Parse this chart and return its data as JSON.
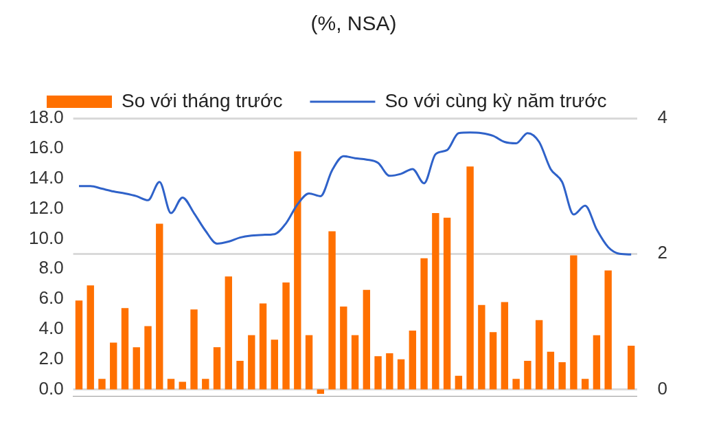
{
  "chart_data": {
    "type": "bar",
    "title": "(%, NSA)",
    "categories": [
      null,
      null,
      null,
      null,
      null,
      null,
      null,
      null,
      null,
      null,
      null,
      null,
      null,
      null,
      null,
      null,
      null,
      null,
      null,
      null,
      null,
      null,
      null,
      null,
      null,
      null,
      null,
      null,
      null,
      null,
      null,
      null,
      null,
      null,
      null,
      null,
      null,
      null,
      null,
      null,
      null,
      null,
      null,
      null,
      null,
      null,
      null,
      null,
      null
    ],
    "series": [
      {
        "name": "So với tháng trước",
        "color": "#ff7000",
        "values": [
          5.9,
          6.9,
          0.7,
          3.1,
          5.4,
          2.8,
          4.2,
          11.0,
          0.7,
          0.5,
          5.3,
          0.7,
          2.8,
          7.5,
          1.9,
          3.6,
          5.7,
          3.3,
          7.1,
          15.8,
          3.6,
          -0.3,
          10.5,
          5.5,
          3.6,
          6.6,
          2.2,
          2.4,
          2.0,
          3.9,
          8.7,
          11.7,
          11.4,
          0.9,
          14.8,
          5.6,
          3.8,
          5.8,
          0.7,
          1.9,
          4.6,
          2.5,
          1.8,
          8.9,
          0.7,
          3.6,
          7.9,
          null,
          2.9
        ]
      },
      {
        "name": "So với cùng kỳ năm trước",
        "type": "line",
        "axis": "y2",
        "color": "#2f62c9",
        "values": [
          3.0,
          3.0,
          2.96,
          2.92,
          2.89,
          2.85,
          2.79,
          3.06,
          2.6,
          2.83,
          2.6,
          2.34,
          2.15,
          2.18,
          2.24,
          2.27,
          2.28,
          2.29,
          2.45,
          2.73,
          2.89,
          2.85,
          3.23,
          3.44,
          3.41,
          3.39,
          3.34,
          3.15,
          3.18,
          3.25,
          3.04,
          3.47,
          3.53,
          3.78,
          3.79,
          3.78,
          3.74,
          3.65,
          3.63,
          3.78,
          3.65,
          3.25,
          3.06,
          2.58,
          2.71,
          2.36,
          2.1,
          2.0,
          1.99
        ]
      }
    ],
    "ylim": [
      -0.45,
      18
    ],
    "yticks": [
      {
        "value": 0,
        "label": "0.0"
      },
      {
        "value": 2,
        "label": "2.0"
      },
      {
        "value": 4,
        "label": "4.0"
      },
      {
        "value": 6,
        "label": "6.0"
      },
      {
        "value": 8,
        "label": "8.0"
      },
      {
        "value": 10,
        "label": "10.0"
      },
      {
        "value": 12,
        "label": "12.0"
      },
      {
        "value": 14,
        "label": "14.0"
      },
      {
        "value": 16,
        "label": "16.0"
      },
      {
        "value": 18,
        "label": "18.0"
      }
    ],
    "y2lim": [
      -0.1,
      4
    ],
    "y2ticks": [
      0,
      2,
      4
    ],
    "grid": "y2",
    "legend": "top",
    "marker": "none",
    "line_style": "solid"
  }
}
